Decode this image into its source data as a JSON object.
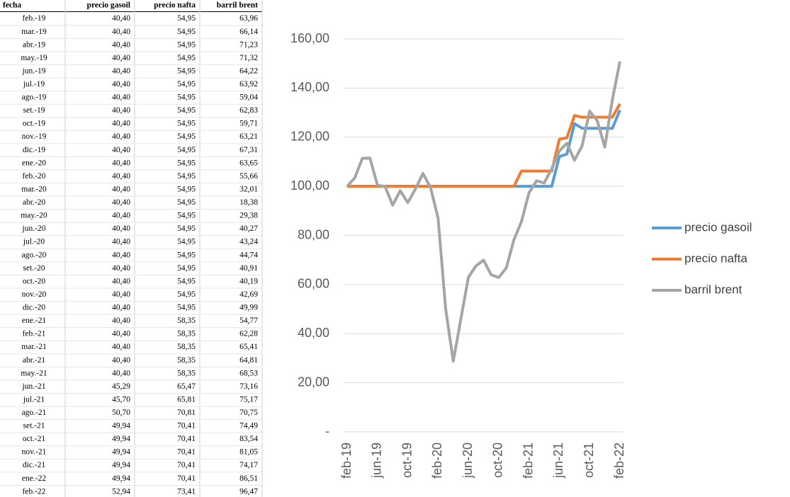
{
  "table": {
    "header": [
      "fecha",
      "precio gasoil",
      "precio nafta",
      "barril brent"
    ],
    "rows": [
      [
        "feb.-19",
        "40,40",
        "54,95",
        "63,96"
      ],
      [
        "mar.-19",
        "40,40",
        "54,95",
        "66,14"
      ],
      [
        "abr.-19",
        "40,40",
        "54,95",
        "71,23"
      ],
      [
        "may.-19",
        "40,40",
        "54,95",
        "71,32"
      ],
      [
        "jun.-19",
        "40,40",
        "54,95",
        "64,22"
      ],
      [
        "jul.-19",
        "40,40",
        "54,95",
        "63,92"
      ],
      [
        "ago.-19",
        "40,40",
        "54,95",
        "59,04"
      ],
      [
        "set.-19",
        "40,40",
        "54,95",
        "62,83"
      ],
      [
        "oct.-19",
        "40,40",
        "54,95",
        "59,71"
      ],
      [
        "nov.-19",
        "40,40",
        "54,95",
        "63,21"
      ],
      [
        "dic.-19",
        "40,40",
        "54,95",
        "67,31"
      ],
      [
        "ene.-20",
        "40,40",
        "54,95",
        "63,65"
      ],
      [
        "feb.-20",
        "40,40",
        "54,95",
        "55,66"
      ],
      [
        "mar.-20",
        "40,40",
        "54,95",
        "32,01"
      ],
      [
        "abr.-20",
        "40,40",
        "54,95",
        "18,38"
      ],
      [
        "may.-20",
        "40,40",
        "54,95",
        "29,38"
      ],
      [
        "jun.-20",
        "40,40",
        "54,95",
        "40,27"
      ],
      [
        "jul.-20",
        "40,40",
        "54,95",
        "43,24"
      ],
      [
        "ago.-20",
        "40,40",
        "54,95",
        "44,74"
      ],
      [
        "set.-20",
        "40,40",
        "54,95",
        "40,91"
      ],
      [
        "oct.-20",
        "40,40",
        "54,95",
        "40,19"
      ],
      [
        "nov.-20",
        "40,40",
        "54,95",
        "42,69"
      ],
      [
        "dic.-20",
        "40,40",
        "54,95",
        "49,99"
      ],
      [
        "ene.-21",
        "40,40",
        "58,35",
        "54,77"
      ],
      [
        "feb.-21",
        "40,40",
        "58,35",
        "62,28"
      ],
      [
        "mar.-21",
        "40,40",
        "58,35",
        "65,41"
      ],
      [
        "abr.-21",
        "40,40",
        "58,35",
        "64,81"
      ],
      [
        "may.-21",
        "40,40",
        "58,35",
        "68,53"
      ],
      [
        "jun.-21",
        "45,29",
        "65,47",
        "73,16"
      ],
      [
        "jul.-21",
        "45,70",
        "65,81",
        "75,17"
      ],
      [
        "ago.-21",
        "50,70",
        "70,81",
        "70,75"
      ],
      [
        "set.-21",
        "49,94",
        "70,41",
        "74,49"
      ],
      [
        "oct.-21",
        "49,94",
        "70,41",
        "83,54"
      ],
      [
        "nov.-21",
        "49,94",
        "70,41",
        "81,05"
      ],
      [
        "dic.-21",
        "49,94",
        "70,41",
        "74,17"
      ],
      [
        "ene.-22",
        "49,94",
        "70,41",
        "86,51"
      ],
      [
        "feb.-22",
        "52,94",
        "73,41",
        "96,47"
      ]
    ]
  },
  "chart_data": {
    "type": "line",
    "categories": [
      "feb-19",
      null,
      null,
      null,
      "jun-19",
      null,
      null,
      null,
      "oct-19",
      null,
      null,
      null,
      "feb-20",
      null,
      null,
      null,
      "jun-20",
      null,
      null,
      null,
      "oct-20",
      null,
      null,
      null,
      "feb-21",
      null,
      null,
      null,
      "jun-21",
      null,
      null,
      null,
      "oct-21",
      null,
      null,
      null,
      "feb-22"
    ],
    "series": [
      {
        "name": "precio gasoil",
        "color": "#5b9bd5",
        "values": [
          100,
          100,
          100,
          100,
          100,
          100,
          100,
          100,
          100,
          100,
          100,
          100,
          100,
          100,
          100,
          100,
          100,
          100,
          100,
          100,
          100,
          100,
          100,
          100,
          100,
          100,
          100,
          100,
          112.1,
          113.12,
          125.5,
          123.61,
          123.61,
          123.61,
          123.61,
          123.61,
          131.04
        ]
      },
      {
        "name": "precio nafta",
        "color": "#ed7d31",
        "values": [
          100,
          100,
          100,
          100,
          100,
          100,
          100,
          100,
          100,
          100,
          100,
          100,
          100,
          100,
          100,
          100,
          100,
          100,
          100,
          100,
          100,
          100,
          100,
          106.19,
          106.19,
          106.19,
          106.19,
          106.19,
          119.14,
          119.76,
          128.86,
          128.13,
          128.13,
          128.13,
          128.13,
          128.13,
          133.59
        ]
      },
      {
        "name": "barril brent",
        "color": "#a5a5a5",
        "values": [
          100,
          103.41,
          111.37,
          111.51,
          100.41,
          99.94,
          92.31,
          98.23,
          93.36,
          98.83,
          105.24,
          99.52,
          87.02,
          50.05,
          28.74,
          45.93,
          62.96,
          67.6,
          69.95,
          63.96,
          62.84,
          66.74,
          78.16,
          85.63,
          97.37,
          102.27,
          101.33,
          107.15,
          114.38,
          117.53,
          110.62,
          116.46,
          130.61,
          126.72,
          115.96,
          135.26,
          150.83
        ]
      }
    ],
    "ylim": [
      0,
      160
    ],
    "yticks": [
      {
        "value": 0,
        "label": "-"
      },
      {
        "value": 20,
        "label": "20,00"
      },
      {
        "value": 40,
        "label": "40,00"
      },
      {
        "value": 60,
        "label": "60,00"
      },
      {
        "value": 80,
        "label": "80,00"
      },
      {
        "value": 100,
        "label": "100,00"
      },
      {
        "value": 120,
        "label": "120,00"
      },
      {
        "value": 140,
        "label": "140,00"
      },
      {
        "value": 160,
        "label": "160,00"
      }
    ],
    "grid": true,
    "legend": "right"
  }
}
